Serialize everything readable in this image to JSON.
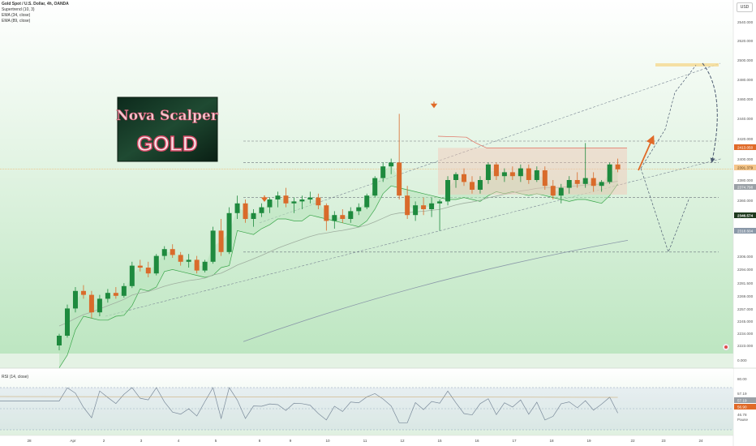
{
  "header": {
    "title": "Gold Spot / U.S. Dollar, 4h, OANDA",
    "indicators": [
      "Supertrend (10, 3)",
      "EMA (34, close)",
      "EMA (89, close)"
    ],
    "currency_button": "USD"
  },
  "colors": {
    "up": "#1e8a3e",
    "down": "#d96b2b",
    "bg_top": "#ffffff",
    "bg_bottom": "#bfe7c2",
    "ema34": "#9fae9f",
    "ema89": "#8a98a8",
    "arrow": "#e06a28",
    "projection": "#4b5a70"
  },
  "price_axis": {
    "labels": [
      "2540.000",
      "2520.000",
      "2500.000",
      "2480.000",
      "2460.000",
      "2440.000",
      "2420.000",
      "2400.000",
      "2380.000",
      "2360.000",
      "2346.574",
      "2330.000",
      "2306.000",
      "2294.000",
      "2281.500",
      "2269.000",
      "2257.000",
      "2245.000",
      "2234.000",
      "2223.000",
      "0.000"
    ],
    "tags": [
      {
        "text": "2413.050",
        "color": "#e06a28"
      },
      {
        "text": "2391.379",
        "color": "#f5c58a"
      },
      {
        "text": "2374.798",
        "color": "#9aa0a6"
      },
      {
        "text": "2346.574",
        "color": "#1e3a1e"
      },
      {
        "text": "2318.604",
        "color": "#8a98a8"
      }
    ]
  },
  "time_axis": [
    "28",
    "Apr",
    "2",
    "3",
    "4",
    "5",
    "8",
    "9",
    "10",
    "11",
    "12",
    "15",
    "16",
    "17",
    "18",
    "19",
    "22",
    "23",
    "24"
  ],
  "rsi": {
    "label": "RSI (14, close)",
    "axis": [
      "80.00",
      "57.19",
      "46.78",
      "Pause"
    ],
    "tags": [
      {
        "text": "57.19",
        "color": "#9aa0a6"
      },
      {
        "text": "56.90",
        "color": "#e06a28"
      }
    ]
  },
  "logo": {
    "line1": "Nova Scalper",
    "line2": "GOLD"
  },
  "chart_data": {
    "type": "candlestick",
    "title": "Gold Spot / U.S. Dollar, 4h, OANDA",
    "ylim": [
      2205,
      2550
    ],
    "current_price": 2391.379,
    "candles": [
      [
        2210,
        2222,
        2205,
        2220
      ],
      [
        2220,
        2252,
        2218,
        2248
      ],
      [
        2248,
        2270,
        2244,
        2266
      ],
      [
        2266,
        2272,
        2258,
        2262
      ],
      [
        2262,
        2266,
        2238,
        2244
      ],
      [
        2244,
        2262,
        2240,
        2258
      ],
      [
        2258,
        2268,
        2254,
        2264
      ],
      [
        2264,
        2270,
        2258,
        2261
      ],
      [
        2261,
        2274,
        2259,
        2271
      ],
      [
        2271,
        2296,
        2269,
        2292
      ],
      [
        2292,
        2298,
        2286,
        2290
      ],
      [
        2290,
        2296,
        2280,
        2284
      ],
      [
        2284,
        2304,
        2282,
        2302
      ],
      [
        2302,
        2312,
        2298,
        2309
      ],
      [
        2309,
        2314,
        2300,
        2303
      ],
      [
        2303,
        2306,
        2292,
        2296
      ],
      [
        2296,
        2304,
        2290,
        2298
      ],
      [
        2298,
        2302,
        2284,
        2287
      ],
      [
        2287,
        2298,
        2285,
        2296
      ],
      [
        2296,
        2332,
        2294,
        2328
      ],
      [
        2328,
        2340,
        2302,
        2306
      ],
      [
        2306,
        2352,
        2304,
        2346
      ],
      [
        2346,
        2364,
        2340,
        2356
      ],
      [
        2356,
        2360,
        2336,
        2340
      ],
      [
        2340,
        2350,
        2332,
        2346
      ],
      [
        2346,
        2356,
        2342,
        2352
      ],
      [
        2352,
        2362,
        2346,
        2360
      ],
      [
        2360,
        2368,
        2352,
        2364
      ],
      [
        2364,
        2372,
        2352,
        2356
      ],
      [
        2356,
        2362,
        2346,
        2358
      ],
      [
        2358,
        2364,
        2350,
        2360
      ],
      [
        2360,
        2368,
        2356,
        2362
      ],
      [
        2362,
        2366,
        2350,
        2354
      ],
      [
        2354,
        2356,
        2328,
        2338
      ],
      [
        2338,
        2348,
        2330,
        2344
      ],
      [
        2344,
        2350,
        2336,
        2340
      ],
      [
        2340,
        2352,
        2336,
        2348
      ],
      [
        2348,
        2356,
        2344,
        2352
      ],
      [
        2352,
        2366,
        2350,
        2364
      ],
      [
        2364,
        2384,
        2362,
        2382
      ],
      [
        2382,
        2398,
        2378,
        2394
      ],
      [
        2394,
        2402,
        2386,
        2398
      ],
      [
        2398,
        2448,
        2360,
        2364
      ],
      [
        2364,
        2374,
        2340,
        2344
      ],
      [
        2344,
        2358,
        2338,
        2354
      ],
      [
        2354,
        2362,
        2344,
        2350
      ],
      [
        2350,
        2362,
        2342,
        2356
      ],
      [
        2356,
        2360,
        2328,
        2358
      ],
      [
        2358,
        2384,
        2354,
        2380
      ],
      [
        2380,
        2388,
        2372,
        2386
      ],
      [
        2386,
        2392,
        2374,
        2378
      ],
      [
        2378,
        2384,
        2366,
        2370
      ],
      [
        2370,
        2384,
        2366,
        2380
      ],
      [
        2380,
        2398,
        2376,
        2396
      ],
      [
        2396,
        2398,
        2380,
        2384
      ],
      [
        2384,
        2392,
        2378,
        2388
      ],
      [
        2388,
        2394,
        2380,
        2384
      ],
      [
        2384,
        2396,
        2378,
        2392
      ],
      [
        2392,
        2396,
        2376,
        2380
      ],
      [
        2380,
        2394,
        2378,
        2390
      ],
      [
        2390,
        2394,
        2370,
        2374
      ],
      [
        2374,
        2380,
        2360,
        2364
      ],
      [
        2364,
        2376,
        2356,
        2372
      ],
      [
        2372,
        2384,
        2366,
        2380
      ],
      [
        2380,
        2388,
        2372,
        2376
      ],
      [
        2376,
        2418,
        2372,
        2382
      ],
      [
        2382,
        2388,
        2368,
        2374
      ],
      [
        2374,
        2380,
        2368,
        2378
      ],
      [
        2378,
        2398,
        2376,
        2396
      ],
      [
        2396,
        2402,
        2388,
        2391
      ]
    ],
    "support_levels": [
      2420,
      2398,
      2362,
      2306
    ],
    "targets": [
      2498,
      2470,
      2420
    ]
  }
}
